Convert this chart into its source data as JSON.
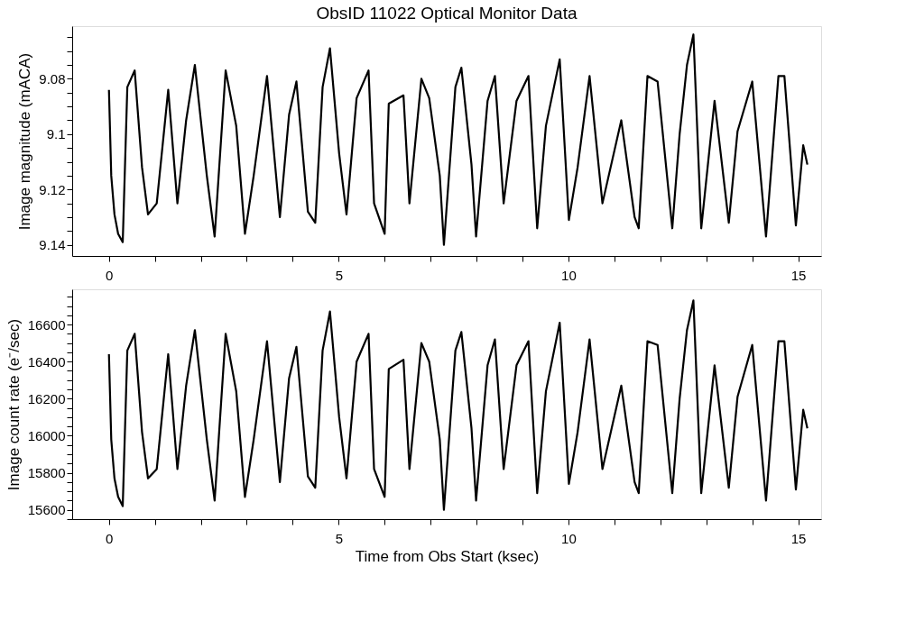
{
  "chart_data": [
    {
      "type": "line",
      "title": "ObsID 11022 Optical Monitor Data",
      "ylabel": "Image magnitude (mACA)",
      "x": [
        0.0,
        0.05,
        0.12,
        0.2,
        0.3,
        0.4,
        0.56,
        0.72,
        0.85,
        1.04,
        1.29,
        1.49,
        1.68,
        1.87,
        2.13,
        2.3,
        2.54,
        2.77,
        2.96,
        3.15,
        3.44,
        3.72,
        3.92,
        4.08,
        4.33,
        4.49,
        4.65,
        4.81,
        5.01,
        5.17,
        5.39,
        5.65,
        5.77,
        6.0,
        6.09,
        6.41,
        6.54,
        6.8,
        6.97,
        7.2,
        7.29,
        7.54,
        7.67,
        7.89,
        7.99,
        8.24,
        8.4,
        8.59,
        8.87,
        9.13,
        9.32,
        9.51,
        9.81,
        10.01,
        10.2,
        10.46,
        10.74,
        11.15,
        11.44,
        11.53,
        11.72,
        11.94,
        12.26,
        12.42,
        12.58,
        12.72,
        12.89,
        13.18,
        13.49,
        13.68,
        14.0,
        14.3,
        14.57,
        14.7,
        14.95,
        15.11,
        15.2
      ],
      "series": [
        {
          "color": "#000000",
          "values": [
            9.084,
            9.115,
            9.129,
            9.136,
            9.139,
            9.083,
            9.077,
            9.112,
            9.129,
            9.125,
            9.084,
            9.125,
            9.095,
            9.075,
            9.115,
            9.137,
            9.077,
            9.097,
            9.136,
            9.115,
            9.079,
            9.13,
            9.093,
            9.081,
            9.128,
            9.132,
            9.083,
            9.069,
            9.107,
            9.129,
            9.087,
            9.077,
            9.125,
            9.136,
            9.089,
            9.086,
            9.125,
            9.08,
            9.087,
            9.115,
            9.14,
            9.083,
            9.076,
            9.111,
            9.137,
            9.088,
            9.079,
            9.125,
            9.088,
            9.079,
            9.134,
            9.097,
            9.073,
            9.131,
            9.112,
            9.079,
            9.125,
            9.095,
            9.13,
            9.134,
            9.079,
            9.081,
            9.134,
            9.1,
            9.075,
            9.064,
            9.134,
            9.088,
            9.132,
            9.099,
            9.081,
            9.137,
            9.079,
            9.079,
            9.133,
            9.104,
            9.111
          ]
        }
      ],
      "xlim": [
        -0.8,
        15.5
      ],
      "xticks": [
        0,
        {
          "value": 1,
          "label": null
        },
        {
          "value": 2,
          "label": null
        },
        {
          "value": 3,
          "label": null
        },
        {
          "value": 4,
          "label": null
        },
        5,
        {
          "value": 6,
          "label": null
        },
        {
          "value": 7,
          "label": null
        },
        {
          "value": 8,
          "label": null
        },
        {
          "value": 9,
          "label": null
        },
        10,
        {
          "value": 11,
          "label": null
        },
        {
          "value": 12,
          "label": null
        },
        {
          "value": 13,
          "label": null
        },
        {
          "value": 14,
          "label": null
        },
        15
      ],
      "ylim": [
        9.144,
        9.061
      ],
      "yticks": [
        {
          "value": 9.065,
          "label": null
        },
        {
          "value": 9.07,
          "label": null
        },
        {
          "value": 9.075,
          "label": null
        },
        9.08,
        {
          "value": 9.085,
          "label": null
        },
        {
          "value": 9.09,
          "label": null
        },
        {
          "value": 9.095,
          "label": null
        },
        {
          "value": 9.1,
          "label": "9.1"
        },
        {
          "value": 9.105,
          "label": null
        },
        {
          "value": 9.11,
          "label": null
        },
        {
          "value": 9.115,
          "label": null
        },
        9.12,
        {
          "value": 9.125,
          "label": null
        },
        {
          "value": 9.13,
          "label": null
        },
        {
          "value": 9.135,
          "label": null
        },
        9.14
      ],
      "grid": false,
      "legend": false,
      "marker": "none",
      "line_style": "solid"
    },
    {
      "type": "line",
      "xlabel": "Time from Obs Start (ksec)",
      "ylabel": "Image count rate (e⁻/sec)",
      "x": [
        0.0,
        0.05,
        0.12,
        0.2,
        0.3,
        0.4,
        0.56,
        0.72,
        0.85,
        1.04,
        1.29,
        1.49,
        1.68,
        1.87,
        2.13,
        2.3,
        2.54,
        2.77,
        2.96,
        3.15,
        3.44,
        3.72,
        3.92,
        4.08,
        4.33,
        4.49,
        4.65,
        4.81,
        5.01,
        5.17,
        5.39,
        5.65,
        5.77,
        6.0,
        6.09,
        6.41,
        6.54,
        6.8,
        6.97,
        7.2,
        7.29,
        7.54,
        7.67,
        7.89,
        7.99,
        8.24,
        8.4,
        8.59,
        8.87,
        9.13,
        9.32,
        9.51,
        9.81,
        10.01,
        10.2,
        10.46,
        10.74,
        11.15,
        11.44,
        11.53,
        11.72,
        11.94,
        12.26,
        12.42,
        12.58,
        12.72,
        12.89,
        13.18,
        13.49,
        13.68,
        14.0,
        14.3,
        14.57,
        14.7,
        14.95,
        15.11,
        15.2
      ],
      "series": [
        {
          "color": "#000000",
          "values": [
            16440,
            15980,
            15770,
            15670,
            15620,
            16460,
            16550,
            16020,
            15770,
            15820,
            16440,
            15820,
            16270,
            16570,
            15980,
            15650,
            16550,
            16240,
            15670,
            15980,
            16510,
            15750,
            16310,
            16480,
            15780,
            15720,
            16460,
            16670,
            16100,
            15770,
            16400,
            16550,
            15820,
            15670,
            16360,
            16410,
            15820,
            16500,
            16400,
            15980,
            15600,
            16460,
            16560,
            16040,
            15650,
            16380,
            16520,
            15820,
            16380,
            16510,
            15690,
            16240,
            16610,
            15740,
            16020,
            16520,
            15820,
            16270,
            15750,
            15690,
            16510,
            16490,
            15690,
            16200,
            16570,
            16730,
            15690,
            16380,
            15720,
            16210,
            16490,
            15650,
            16510,
            16510,
            15710,
            16140,
            16040
          ]
        }
      ],
      "xlim": [
        -0.8,
        15.5
      ],
      "xticks": [
        0,
        {
          "value": 1,
          "label": null
        },
        {
          "value": 2,
          "label": null
        },
        {
          "value": 3,
          "label": null
        },
        {
          "value": 4,
          "label": null
        },
        5,
        {
          "value": 6,
          "label": null
        },
        {
          "value": 7,
          "label": null
        },
        {
          "value": 8,
          "label": null
        },
        {
          "value": 9,
          "label": null
        },
        10,
        {
          "value": 11,
          "label": null
        },
        {
          "value": 12,
          "label": null
        },
        {
          "value": 13,
          "label": null
        },
        {
          "value": 14,
          "label": null
        },
        15
      ],
      "ylim": [
        15550,
        16790
      ],
      "yticks": [
        {
          "value": 15550,
          "label": null
        },
        15600,
        {
          "value": 15650,
          "label": null
        },
        {
          "value": 15700,
          "label": null
        },
        {
          "value": 15750,
          "label": null
        },
        15800,
        {
          "value": 15850,
          "label": null
        },
        {
          "value": 15900,
          "label": null
        },
        {
          "value": 15950,
          "label": null
        },
        16000,
        {
          "value": 16050,
          "label": null
        },
        {
          "value": 16100,
          "label": null
        },
        {
          "value": 16150,
          "label": null
        },
        16200,
        {
          "value": 16250,
          "label": null
        },
        {
          "value": 16300,
          "label": null
        },
        {
          "value": 16350,
          "label": null
        },
        16400,
        {
          "value": 16450,
          "label": null
        },
        {
          "value": 16500,
          "label": null
        },
        {
          "value": 16550,
          "label": null
        },
        16600,
        {
          "value": 16650,
          "label": null
        },
        {
          "value": 16700,
          "label": null
        },
        {
          "value": 16750,
          "label": null
        }
      ],
      "grid": false,
      "legend": false,
      "marker": "none",
      "line_style": "solid"
    }
  ]
}
